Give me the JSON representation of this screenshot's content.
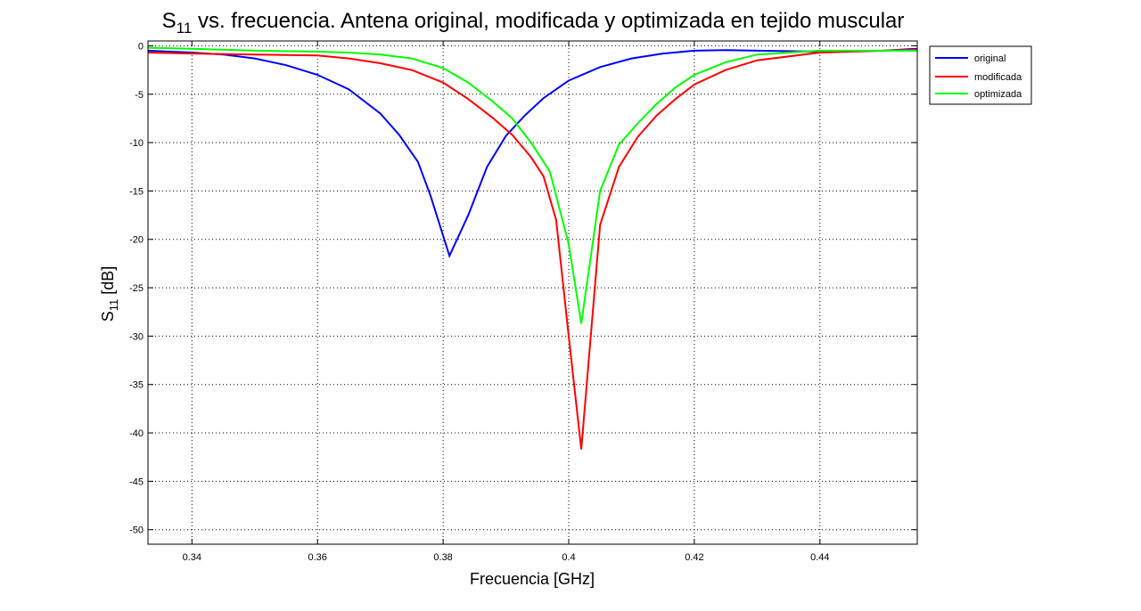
{
  "chart_data": {
    "type": "line",
    "title": "S",
    "title_sub": "11",
    "title_rest": " vs. frecuencia. Antena original, modificada y optimizada en tejido muscular",
    "xlabel": "Frecuencia [GHz]",
    "ylabel": "S",
    "ylabel_sub": "11",
    "ylabel_rest": " [dB]",
    "xlim": [
      0.333,
      0.4555
    ],
    "ylim": [
      -51.5,
      0.5
    ],
    "xticks": [
      0.34,
      0.36,
      0.38,
      0.4,
      0.42,
      0.44
    ],
    "xtick_labels": [
      "0.34",
      "0.36",
      "0.38",
      "0.4",
      "0.42",
      "0.44"
    ],
    "yticks": [
      0,
      -5,
      -10,
      -15,
      -20,
      -25,
      -30,
      -35,
      -40,
      -45,
      -50
    ],
    "ytick_labels": [
      "0",
      "-5",
      "-10",
      "-15",
      "-20",
      "-25",
      "-30",
      "-35",
      "-40",
      "-45",
      "-50"
    ],
    "grid": true,
    "legend_position": "outside-top-right",
    "series": [
      {
        "name": "original",
        "color": "#0000ff",
        "x": [
          0.333,
          0.34,
          0.345,
          0.35,
          0.355,
          0.36,
          0.365,
          0.37,
          0.373,
          0.376,
          0.378,
          0.381,
          0.384,
          0.387,
          0.39,
          0.393,
          0.396,
          0.4,
          0.405,
          0.41,
          0.415,
          0.42,
          0.425,
          0.43,
          0.44,
          0.45,
          0.4555
        ],
        "values": [
          -0.5,
          -0.7,
          -0.9,
          -1.3,
          -2.0,
          -3.0,
          -4.5,
          -7.0,
          -9.2,
          -12.0,
          -15.5,
          -21.7,
          -17.5,
          -12.5,
          -9.3,
          -7.2,
          -5.4,
          -3.6,
          -2.2,
          -1.3,
          -0.8,
          -0.5,
          -0.45,
          -0.5,
          -0.6,
          -0.5,
          -0.3
        ]
      },
      {
        "name": "modificada",
        "color": "#ff0000",
        "x": [
          0.333,
          0.34,
          0.35,
          0.36,
          0.365,
          0.37,
          0.375,
          0.38,
          0.384,
          0.388,
          0.391,
          0.394,
          0.396,
          0.398,
          0.4,
          0.402,
          0.405,
          0.408,
          0.411,
          0.414,
          0.417,
          0.42,
          0.425,
          0.43,
          0.44,
          0.4555
        ],
        "values": [
          -0.7,
          -0.8,
          -0.9,
          -1.0,
          -1.3,
          -1.8,
          -2.5,
          -3.8,
          -5.5,
          -7.5,
          -9.2,
          -11.5,
          -13.5,
          -18.0,
          -30.0,
          -41.7,
          -18.5,
          -12.5,
          -9.4,
          -7.2,
          -5.5,
          -4.0,
          -2.5,
          -1.5,
          -0.7,
          -0.4
        ]
      },
      {
        "name": "optimizada",
        "color": "#00ff00",
        "x": [
          0.333,
          0.34,
          0.35,
          0.36,
          0.365,
          0.37,
          0.375,
          0.38,
          0.384,
          0.388,
          0.391,
          0.394,
          0.397,
          0.4,
          0.402,
          0.405,
          0.408,
          0.411,
          0.414,
          0.417,
          0.42,
          0.425,
          0.43,
          0.44,
          0.4555
        ],
        "values": [
          -0.2,
          -0.3,
          -0.5,
          -0.6,
          -0.7,
          -0.9,
          -1.3,
          -2.3,
          -3.8,
          -5.8,
          -7.5,
          -10.0,
          -13.0,
          -20.5,
          -28.7,
          -15.0,
          -10.2,
          -8.0,
          -6.0,
          -4.3,
          -3.0,
          -1.7,
          -0.9,
          -0.5,
          -0.5
        ]
      }
    ]
  }
}
